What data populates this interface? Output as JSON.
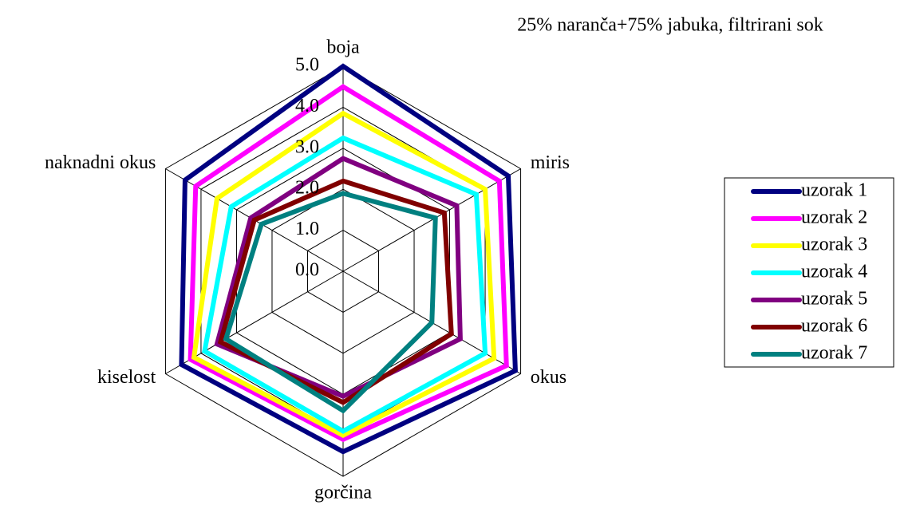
{
  "chart_data": {
    "type": "radar",
    "title": "25% naranča+75% jabuka, filtrirani sok",
    "categories": [
      "boja",
      "miris",
      "okus",
      "gorčina",
      "kiselost",
      "naknadni okus"
    ],
    "ylim": [
      0,
      5
    ],
    "yticks": [
      {
        "value": 0,
        "label": "0.0"
      },
      {
        "value": 1,
        "label": "1.0"
      },
      {
        "value": 2,
        "label": "2.0"
      },
      {
        "value": 3,
        "label": "3.0"
      },
      {
        "value": 4,
        "label": "4.0"
      },
      {
        "value": 5,
        "label": "5.0"
      }
    ],
    "grid": true,
    "legend": "right",
    "series": [
      {
        "name": "uzorak 1",
        "color": "#000080",
        "values": [
          5.0,
          4.65,
          4.85,
          4.4,
          4.55,
          4.45
        ]
      },
      {
        "name": "uzorak 2",
        "color": "#ff00ff",
        "values": [
          4.5,
          4.4,
          4.6,
          4.1,
          4.3,
          4.15
        ]
      },
      {
        "name": "uzorak 3",
        "color": "#ffff00",
        "values": [
          3.85,
          4.0,
          4.25,
          4.0,
          4.2,
          3.55
        ]
      },
      {
        "name": "uzorak 4",
        "color": "#00ffff",
        "values": [
          3.25,
          3.75,
          4.0,
          3.9,
          3.9,
          3.15
        ]
      },
      {
        "name": "uzorak 5",
        "color": "#800080",
        "values": [
          2.75,
          3.2,
          3.3,
          3.05,
          3.55,
          2.6
        ]
      },
      {
        "name": "uzorak 6",
        "color": "#800000",
        "values": [
          2.2,
          2.85,
          3.05,
          3.2,
          3.45,
          2.5
        ]
      },
      {
        "name": "uzorak 7",
        "color": "#008080",
        "values": [
          1.9,
          2.6,
          2.5,
          3.4,
          3.3,
          2.3
        ]
      }
    ]
  }
}
